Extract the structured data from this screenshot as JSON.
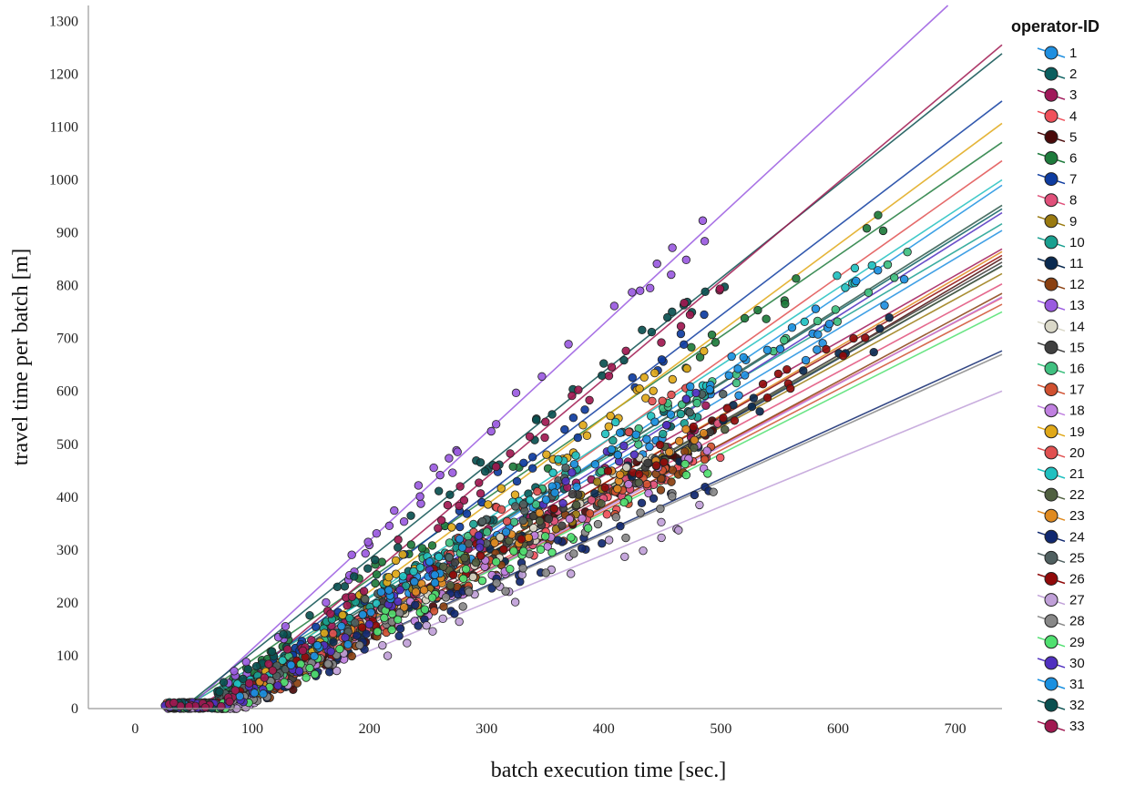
{
  "chart_data": {
    "type": "scatter",
    "xlabel": "batch execution time [sec.]",
    "ylabel": "travel time per batch [m]",
    "xlim": [
      -40,
      740
    ],
    "ylim": [
      0,
      1330
    ],
    "x_ticks": [
      0,
      100,
      200,
      300,
      400,
      500,
      600,
      700
    ],
    "y_ticks": [
      0,
      100,
      200,
      300,
      400,
      500,
      600,
      700,
      800,
      900,
      1000,
      1100,
      1200,
      1300
    ],
    "grid": false,
    "legend": {
      "title": "operator-ID",
      "position": "right"
    },
    "series": [
      {
        "name": "1",
        "color": "#1f8fe0",
        "fit": {
          "x0": 60,
          "slope": 1.33
        }
      },
      {
        "name": "2",
        "color": "#0a5f5f",
        "fit": {
          "x0": 55,
          "slope": 1.38
        }
      },
      {
        "name": "3",
        "color": "#a0195a",
        "fit": {
          "x0": 50,
          "slope": 1.26
        }
      },
      {
        "name": "4",
        "color": "#f0505a",
        "fit": {
          "x0": 70,
          "slope": 1.16
        }
      },
      {
        "name": "5",
        "color": "#4a0a0a",
        "fit": {
          "x0": 90,
          "slope": 1.31
        }
      },
      {
        "name": "6",
        "color": "#1e7b3c",
        "fit": {
          "x0": 40,
          "slope": 1.53
        }
      },
      {
        "name": "7",
        "color": "#0e3ca0",
        "fit": {
          "x0": 60,
          "slope": 1.69
        }
      },
      {
        "name": "8",
        "color": "#e0507a",
        "fit": {
          "x0": 65,
          "slope": 1.19
        }
      },
      {
        "name": "9",
        "color": "#9a7a10",
        "fit": {
          "x0": 60,
          "slope": 1.21
        }
      },
      {
        "name": "10",
        "color": "#19a090",
        "fit": {
          "x0": 40,
          "slope": 1.31
        }
      },
      {
        "name": "11",
        "color": "#0a2a50",
        "fit": {
          "x0": 75,
          "slope": 1.26
        }
      },
      {
        "name": "12",
        "color": "#8a4010",
        "fit": {
          "x0": 80,
          "slope": 1.19
        }
      },
      {
        "name": "13",
        "color": "#9a5ae0",
        "fit": {
          "x0": 45,
          "slope": 2.05
        }
      },
      {
        "name": "14",
        "color": "#dad8c8",
        "fit": {
          "x0": 75,
          "slope": 1.27
        }
      },
      {
        "name": "15",
        "color": "#404040",
        "fit": {
          "x0": 70,
          "slope": 1.26
        }
      },
      {
        "name": "16",
        "color": "#40c080",
        "fit": {
          "x0": 60,
          "slope": 1.4
        }
      },
      {
        "name": "17",
        "color": "#d05030",
        "fit": {
          "x0": 75,
          "slope": 1.15
        }
      },
      {
        "name": "18",
        "color": "#c080e0",
        "fit": {
          "x0": 80,
          "slope": 1.18
        }
      },
      {
        "name": "19",
        "color": "#e0a818",
        "fit": {
          "x0": 65,
          "slope": 1.64
        }
      },
      {
        "name": "20",
        "color": "#e05050",
        "fit": {
          "x0": 80,
          "slope": 1.57
        }
      },
      {
        "name": "21",
        "color": "#20c0c0",
        "fit": {
          "x0": 55,
          "slope": 1.46
        }
      },
      {
        "name": "22",
        "color": "#506040",
        "fit": {
          "x0": 65,
          "slope": 1.24
        }
      },
      {
        "name": "23",
        "color": "#e08a20",
        "fit": {
          "x0": 70,
          "slope": 1.29
        }
      },
      {
        "name": "24",
        "color": "#102870",
        "fit": {
          "x0": 70,
          "slope": 1.01
        }
      },
      {
        "name": "25",
        "color": "#506060",
        "fit": {
          "x0": 60,
          "slope": 1.4
        }
      },
      {
        "name": "26",
        "color": "#900a0a",
        "fit": {
          "x0": 65,
          "slope": 1.27
        }
      },
      {
        "name": "27",
        "color": "#c0a0d8",
        "fit": {
          "x0": 80,
          "slope": 0.91
        }
      },
      {
        "name": "28",
        "color": "#888888",
        "fit": {
          "x0": 70,
          "slope": 1.0
        }
      },
      {
        "name": "29",
        "color": "#50e070",
        "fit": {
          "x0": 70,
          "slope": 1.12
        }
      },
      {
        "name": "30",
        "color": "#5030c0",
        "fit": {
          "x0": 70,
          "slope": 1.4
        }
      },
      {
        "name": "31",
        "color": "#1a90e0",
        "fit": {
          "x0": 80,
          "slope": 1.5
        }
      },
      {
        "name": "32",
        "color": "#0a5050",
        "fit": {
          "x0": 40,
          "slope": 1.77
        }
      },
      {
        "name": "33",
        "color": "#a01850",
        "fit": {
          "x0": 65,
          "slope": 1.86
        }
      }
    ]
  }
}
